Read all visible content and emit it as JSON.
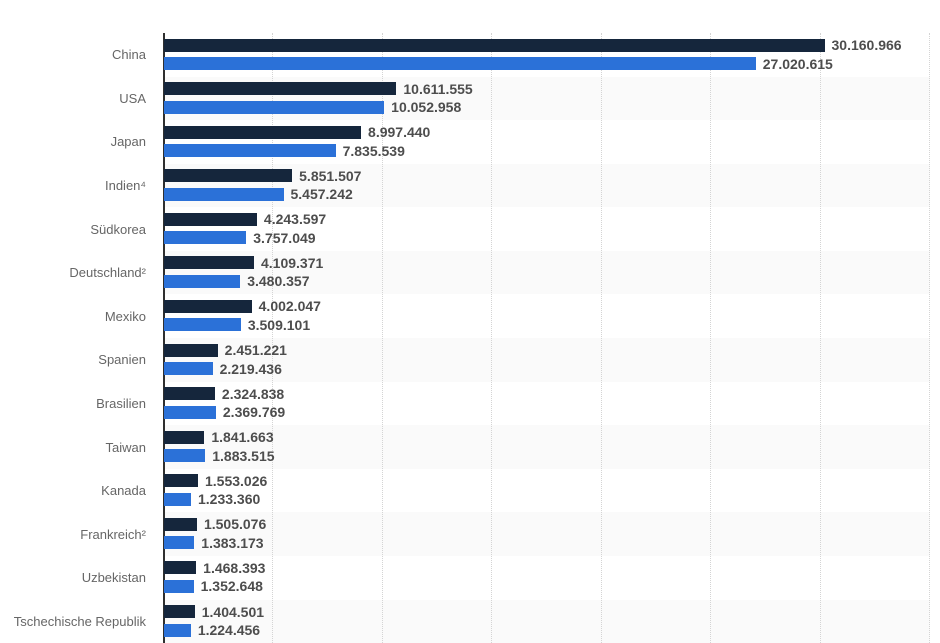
{
  "chart_data": {
    "type": "bar",
    "orientation": "horizontal",
    "title": "",
    "xlabel": "",
    "ylabel": "",
    "grid": "vertical-dotted",
    "legend_position": "not-visible-cropped",
    "xlim": [
      0,
      35070000
    ],
    "gridline_interval": 5000000,
    "categories": [
      "China",
      "USA",
      "Japan",
      "Indien⁴",
      "Südkorea",
      "Deutschland²",
      "Mexiko",
      "Spanien",
      "Brasilien",
      "Taiwan",
      "Kanada",
      "Frankreich²",
      "Uzbekistan",
      "Tschechische Republik"
    ],
    "shaded_row_indices": [
      1,
      3,
      5,
      7,
      9,
      11,
      13
    ],
    "series": [
      {
        "name": "dark",
        "color": "#15263c",
        "values": [
          30160966,
          10611555,
          8997440,
          5851507,
          4243597,
          4109371,
          4002047,
          2451221,
          2324838,
          1841663,
          1553026,
          1505076,
          1468393,
          1404501
        ],
        "labels": [
          "30.160.966",
          "10.611.555",
          "8.997.440",
          "5.851.507",
          "4.243.597",
          "4.109.371",
          "4.002.047",
          "2.451.221",
          "2.324.838",
          "1.841.663",
          "1.553.026",
          "1.505.076",
          "1.468.393",
          "1.404.501"
        ]
      },
      {
        "name": "blue",
        "color": "#2b71d8",
        "values": [
          27020615,
          10052958,
          7835539,
          5457242,
          3757049,
          3480357,
          3509101,
          2219436,
          2369769,
          1883515,
          1233360,
          1383173,
          1352648,
          1224456
        ],
        "labels": [
          "27.020.615",
          "10.052.958",
          "7.835.539",
          "5.457.242",
          "3.757.049",
          "3.480.357",
          "3.509.101",
          "2.219.436",
          "2.369.769",
          "1.883.515",
          "1.233.360",
          "1.383.173",
          "1.352.648",
          "1.224.456"
        ]
      }
    ],
    "colors": {
      "row_band": "#fafafa",
      "gridline": "#d4d4d4",
      "axis_line": "#2f2f2f",
      "category_text": "#666666",
      "value_text": "#4d4d4d",
      "background": "#ffffff"
    }
  }
}
